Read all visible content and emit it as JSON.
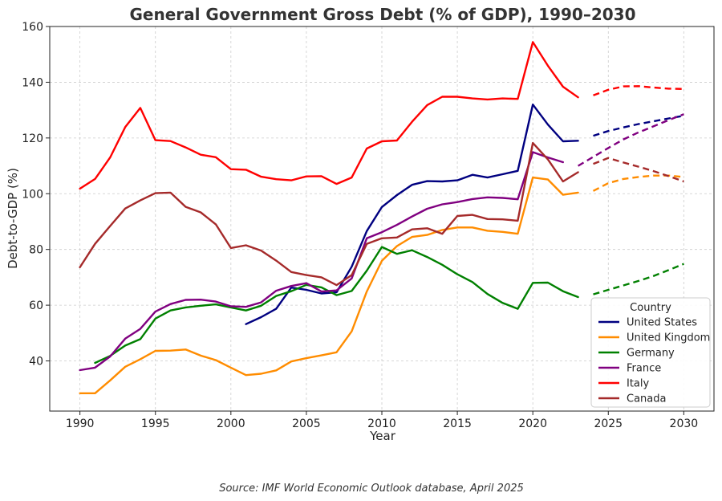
{
  "chart_data": {
    "type": "line",
    "title": "General Government Gross Debt (% of GDP), 1990–2030",
    "xlabel": "Year",
    "ylabel": "Debt-to-GDP (%)",
    "xlim": [
      1988,
      2032
    ],
    "ylim": [
      22,
      160
    ],
    "xticks": [
      1990,
      1995,
      2000,
      2005,
      2010,
      2015,
      2020,
      2025,
      2030
    ],
    "yticks": [
      40,
      60,
      80,
      100,
      120,
      140,
      160
    ],
    "grid": true,
    "legend": {
      "title": "Country",
      "placement": "bottom-right"
    },
    "source": "Source: IMF World Economic Outlook database, April 2025",
    "series": [
      {
        "name": "United States",
        "color": "#000080",
        "actual": [
          [
            2001,
            53.2
          ],
          [
            2002,
            55.7
          ],
          [
            2003,
            58.7
          ],
          [
            2004,
            66.3
          ],
          [
            2005,
            65.5
          ],
          [
            2006,
            64.2
          ],
          [
            2007,
            64.6
          ],
          [
            2008,
            73.8
          ],
          [
            2009,
            86.6
          ],
          [
            2010,
            95.2
          ],
          [
            2011,
            99.5
          ],
          [
            2012,
            103.2
          ],
          [
            2013,
            104.5
          ],
          [
            2014,
            104.4
          ],
          [
            2015,
            104.8
          ],
          [
            2016,
            106.8
          ],
          [
            2017,
            105.8
          ],
          [
            2018,
            107.0
          ],
          [
            2019,
            108.2
          ],
          [
            2020,
            132.0
          ],
          [
            2021,
            124.8
          ],
          [
            2022,
            118.8
          ],
          [
            2023,
            119.0
          ]
        ],
        "projection": [
          [
            2024,
            120.8
          ],
          [
            2025,
            122.5
          ],
          [
            2026,
            123.8
          ],
          [
            2027,
            125.0
          ],
          [
            2028,
            126.0
          ],
          [
            2029,
            127.0
          ],
          [
            2030,
            128.0
          ]
        ]
      },
      {
        "name": "United Kingdom",
        "color": "#ff8c00",
        "actual": [
          [
            1990,
            28.4
          ],
          [
            1991,
            28.4
          ],
          [
            1992,
            33.0
          ],
          [
            1993,
            37.9
          ],
          [
            1994,
            40.6
          ],
          [
            1995,
            43.6
          ],
          [
            1996,
            43.7
          ],
          [
            1997,
            44.1
          ],
          [
            1998,
            41.9
          ],
          [
            1999,
            40.3
          ],
          [
            2000,
            37.6
          ],
          [
            2001,
            34.9
          ],
          [
            2002,
            35.4
          ],
          [
            2003,
            36.6
          ],
          [
            2004,
            39.8
          ],
          [
            2005,
            41.0
          ],
          [
            2006,
            42.0
          ],
          [
            2007,
            43.1
          ],
          [
            2008,
            50.6
          ],
          [
            2009,
            64.9
          ],
          [
            2010,
            75.9
          ],
          [
            2011,
            81.2
          ],
          [
            2012,
            84.5
          ],
          [
            2013,
            85.2
          ],
          [
            2014,
            87.0
          ],
          [
            2015,
            87.9
          ],
          [
            2016,
            87.9
          ],
          [
            2017,
            86.7
          ],
          [
            2018,
            86.3
          ],
          [
            2019,
            85.6
          ],
          [
            2020,
            105.8
          ],
          [
            2021,
            105.1
          ],
          [
            2022,
            99.6
          ],
          [
            2023,
            100.4
          ]
        ],
        "projection": [
          [
            2024,
            101.0
          ],
          [
            2025,
            103.8
          ],
          [
            2026,
            105.3
          ],
          [
            2027,
            106.0
          ],
          [
            2028,
            106.5
          ],
          [
            2029,
            106.5
          ],
          [
            2030,
            106.0
          ]
        ]
      },
      {
        "name": "Germany",
        "color": "#008000",
        "actual": [
          [
            1991,
            39.3
          ],
          [
            1992,
            41.8
          ],
          [
            1993,
            45.5
          ],
          [
            1994,
            47.8
          ],
          [
            1995,
            55.2
          ],
          [
            1996,
            58.1
          ],
          [
            1997,
            59.2
          ],
          [
            1998,
            59.8
          ],
          [
            1999,
            60.3
          ],
          [
            2000,
            59.2
          ],
          [
            2001,
            58.1
          ],
          [
            2002,
            59.8
          ],
          [
            2003,
            63.3
          ],
          [
            2004,
            65.0
          ],
          [
            2005,
            67.3
          ],
          [
            2006,
            66.4
          ],
          [
            2007,
            63.6
          ],
          [
            2008,
            65.1
          ],
          [
            2009,
            72.4
          ],
          [
            2010,
            80.9
          ],
          [
            2011,
            78.4
          ],
          [
            2012,
            79.7
          ],
          [
            2013,
            77.3
          ],
          [
            2014,
            74.5
          ],
          [
            2015,
            71.1
          ],
          [
            2016,
            68.3
          ],
          [
            2017,
            64.0
          ],
          [
            2018,
            60.8
          ],
          [
            2019,
            58.7
          ],
          [
            2020,
            68.0
          ],
          [
            2021,
            68.1
          ],
          [
            2022,
            65.0
          ],
          [
            2023,
            62.9
          ]
        ],
        "projection": [
          [
            2024,
            63.9
          ],
          [
            2025,
            65.5
          ],
          [
            2026,
            67.1
          ],
          [
            2027,
            68.7
          ],
          [
            2028,
            70.5
          ],
          [
            2029,
            72.6
          ],
          [
            2030,
            74.8
          ]
        ]
      },
      {
        "name": "France",
        "color": "#800080",
        "actual": [
          [
            1990,
            36.7
          ],
          [
            1991,
            37.6
          ],
          [
            1992,
            41.6
          ],
          [
            1993,
            48.0
          ],
          [
            1994,
            51.5
          ],
          [
            1995,
            57.7
          ],
          [
            1996,
            60.4
          ],
          [
            1997,
            61.9
          ],
          [
            1998,
            62.0
          ],
          [
            1999,
            61.3
          ],
          [
            2000,
            59.6
          ],
          [
            2001,
            59.4
          ],
          [
            2002,
            61.0
          ],
          [
            2003,
            65.2
          ],
          [
            2004,
            66.9
          ],
          [
            2005,
            67.9
          ],
          [
            2006,
            64.9
          ],
          [
            2007,
            65.3
          ],
          [
            2008,
            69.6
          ],
          [
            2009,
            84.0
          ],
          [
            2010,
            86.2
          ],
          [
            2011,
            88.8
          ],
          [
            2012,
            91.8
          ],
          [
            2013,
            94.6
          ],
          [
            2014,
            96.2
          ],
          [
            2015,
            97.0
          ],
          [
            2016,
            98.1
          ],
          [
            2017,
            98.7
          ],
          [
            2018,
            98.5
          ],
          [
            2019,
            98.0
          ],
          [
            2020,
            114.9
          ],
          [
            2021,
            113.0
          ],
          [
            2022,
            111.3
          ]
        ],
        "projection": [
          [
            2023,
            110.0
          ],
          [
            2024,
            113.2
          ],
          [
            2025,
            116.4
          ],
          [
            2026,
            119.5
          ],
          [
            2027,
            122.0
          ],
          [
            2028,
            124.2
          ],
          [
            2029,
            126.4
          ],
          [
            2030,
            128.5
          ]
        ]
      },
      {
        "name": "Italy",
        "color": "#ff0000",
        "actual": [
          [
            1990,
            101.8
          ],
          [
            1991,
            105.3
          ],
          [
            1992,
            113.0
          ],
          [
            1993,
            123.9
          ],
          [
            1994,
            130.8
          ],
          [
            1995,
            119.2
          ],
          [
            1996,
            118.9
          ],
          [
            1997,
            116.6
          ],
          [
            1998,
            114.0
          ],
          [
            1999,
            113.1
          ],
          [
            2000,
            108.8
          ],
          [
            2001,
            108.6
          ],
          [
            2002,
            106.1
          ],
          [
            2003,
            105.2
          ],
          [
            2004,
            104.8
          ],
          [
            2005,
            106.2
          ],
          [
            2006,
            106.3
          ],
          [
            2007,
            103.5
          ],
          [
            2008,
            105.8
          ],
          [
            2009,
            116.2
          ],
          [
            2010,
            118.8
          ],
          [
            2011,
            119.1
          ],
          [
            2012,
            125.8
          ],
          [
            2013,
            131.8
          ],
          [
            2014,
            134.8
          ],
          [
            2015,
            134.8
          ],
          [
            2016,
            134.2
          ],
          [
            2017,
            133.8
          ],
          [
            2018,
            134.2
          ],
          [
            2019,
            134.0
          ],
          [
            2020,
            154.4
          ],
          [
            2021,
            145.9
          ],
          [
            2022,
            138.4
          ],
          [
            2023,
            134.6
          ]
        ],
        "projection": [
          [
            2024,
            135.3
          ],
          [
            2025,
            137.3
          ],
          [
            2026,
            138.5
          ],
          [
            2027,
            138.6
          ],
          [
            2028,
            138.1
          ],
          [
            2029,
            137.7
          ],
          [
            2030,
            137.6
          ]
        ]
      },
      {
        "name": "Canada",
        "color": "#a52a2a",
        "actual": [
          [
            1990,
            73.6
          ],
          [
            1991,
            82.0
          ],
          [
            1992,
            88.4
          ],
          [
            1993,
            94.7
          ],
          [
            1994,
            97.6
          ],
          [
            1995,
            100.2
          ],
          [
            1996,
            100.4
          ],
          [
            1997,
            95.3
          ],
          [
            1998,
            93.3
          ],
          [
            1999,
            89.0
          ],
          [
            2000,
            80.5
          ],
          [
            2001,
            81.5
          ],
          [
            2002,
            79.6
          ],
          [
            2003,
            76.0
          ],
          [
            2004,
            71.9
          ],
          [
            2005,
            70.8
          ],
          [
            2006,
            70.0
          ],
          [
            2007,
            67.2
          ],
          [
            2008,
            70.8
          ],
          [
            2009,
            82.0
          ],
          [
            2010,
            84.0
          ],
          [
            2011,
            84.3
          ],
          [
            2012,
            87.2
          ],
          [
            2013,
            87.6
          ],
          [
            2014,
            85.6
          ],
          [
            2015,
            92.0
          ],
          [
            2016,
            92.4
          ],
          [
            2017,
            90.9
          ],
          [
            2018,
            90.8
          ],
          [
            2019,
            90.3
          ],
          [
            2020,
            118.2
          ],
          [
            2021,
            112.3
          ],
          [
            2022,
            104.4
          ],
          [
            2023,
            107.7
          ]
        ],
        "projection": [
          [
            2024,
            110.7
          ],
          [
            2025,
            112.8
          ],
          [
            2026,
            111.2
          ],
          [
            2027,
            109.7
          ],
          [
            2028,
            108.1
          ],
          [
            2029,
            106.3
          ],
          [
            2030,
            104.4
          ]
        ]
      }
    ]
  }
}
